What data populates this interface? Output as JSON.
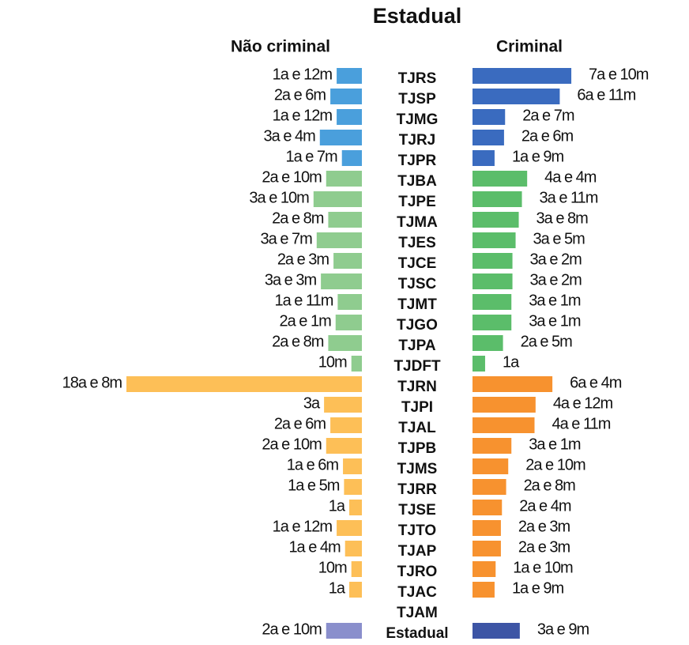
{
  "chart_data": {
    "type": "butterfly-bar",
    "title": "Estadual",
    "categories": [
      "TJRS",
      "TJSP",
      "TJMG",
      "TJRJ",
      "TJPR",
      "TJBA",
      "TJPE",
      "TJMA",
      "TJES",
      "TJCE",
      "TJSC",
      "TJMT",
      "TJGO",
      "TJPA",
      "TJDFT",
      "TJRN",
      "TJPI",
      "TJAL",
      "TJPB",
      "TJMS",
      "TJRR",
      "TJSE",
      "TJTO",
      "TJAP",
      "TJRO",
      "TJAC",
      "TJAM",
      "Estadual"
    ],
    "series": [
      {
        "name": "Não criminal",
        "side": "left",
        "values": [
          24,
          30,
          24,
          40,
          19,
          34,
          46,
          32,
          43,
          27,
          39,
          23,
          25,
          32,
          10,
          224,
          36,
          30,
          34,
          18,
          17,
          12,
          24,
          16,
          10,
          12,
          null,
          34
        ],
        "value_labels": [
          "1a e 12m",
          "2a e 6m",
          "1a e 12m",
          "3a e 4m",
          "1a e 7m",
          "2a e 10m",
          "3a e 10m",
          "2a e 8m",
          "3a e 7m",
          "2a e 3m",
          "3a e 3m",
          "1a e 11m",
          "2a e 1m",
          "2a e 8m",
          "10m",
          "18a e 8m",
          "3a",
          "2a e 6m",
          "2a e 10m",
          "1a e 6m",
          "1a e 5m",
          "1a",
          "1a e 12m",
          "1a e 4m",
          "10m",
          "1a",
          null,
          "2a e 10m"
        ],
        "colors": [
          "#4a9fdc",
          "#4a9fdc",
          "#4a9fdc",
          "#4a9fdc",
          "#4a9fdc",
          "#8fcc8f",
          "#8fcc8f",
          "#8fcc8f",
          "#8fcc8f",
          "#8fcc8f",
          "#8fcc8f",
          "#8fcc8f",
          "#8fcc8f",
          "#8fcc8f",
          "#8fcc8f",
          "#fdbf57",
          "#fdbf57",
          "#fdbf57",
          "#fdbf57",
          "#fdbf57",
          "#fdbf57",
          "#fdbf57",
          "#fdbf57",
          "#fdbf57",
          "#fdbf57",
          "#fdbf57",
          "#fdbf57",
          "#8a8fcc"
        ]
      },
      {
        "name": "Criminal",
        "side": "right",
        "values": [
          94,
          83,
          31,
          30,
          21,
          52,
          47,
          44,
          41,
          38,
          38,
          37,
          37,
          29,
          12,
          76,
          60,
          59,
          37,
          34,
          32,
          28,
          27,
          27,
          22,
          21,
          null,
          45
        ],
        "value_labels": [
          "7a e 10m",
          "6a e 11m",
          "2a e 7m",
          "2a e 6m",
          "1a e 9m",
          "4a e 4m",
          "3a e 11m",
          "3a e 8m",
          "3a e 5m",
          "3a e 2m",
          "3a e 2m",
          "3a e 1m",
          "3a e 1m",
          "2a e 5m",
          "1a",
          "6a e 4m",
          "4a e 12m",
          "4a e 11m",
          "3a e 1m",
          "2a e 10m",
          "2a e 8m",
          "2a e 4m",
          "2a e 3m",
          "2a e 3m",
          "1a e 10m",
          "1a e 9m",
          null,
          "3a e 9m"
        ],
        "colors": [
          "#3a6bbf",
          "#3a6bbf",
          "#3a6bbf",
          "#3a6bbf",
          "#3a6bbf",
          "#5bbd6a",
          "#5bbd6a",
          "#5bbd6a",
          "#5bbd6a",
          "#5bbd6a",
          "#5bbd6a",
          "#5bbd6a",
          "#5bbd6a",
          "#5bbd6a",
          "#5bbd6a",
          "#f7922f",
          "#f7922f",
          "#f7922f",
          "#f7922f",
          "#f7922f",
          "#f7922f",
          "#f7922f",
          "#f7922f",
          "#f7922f",
          "#f7922f",
          "#f7922f",
          "#f7922f",
          "#3d55a5"
        ]
      }
    ]
  }
}
